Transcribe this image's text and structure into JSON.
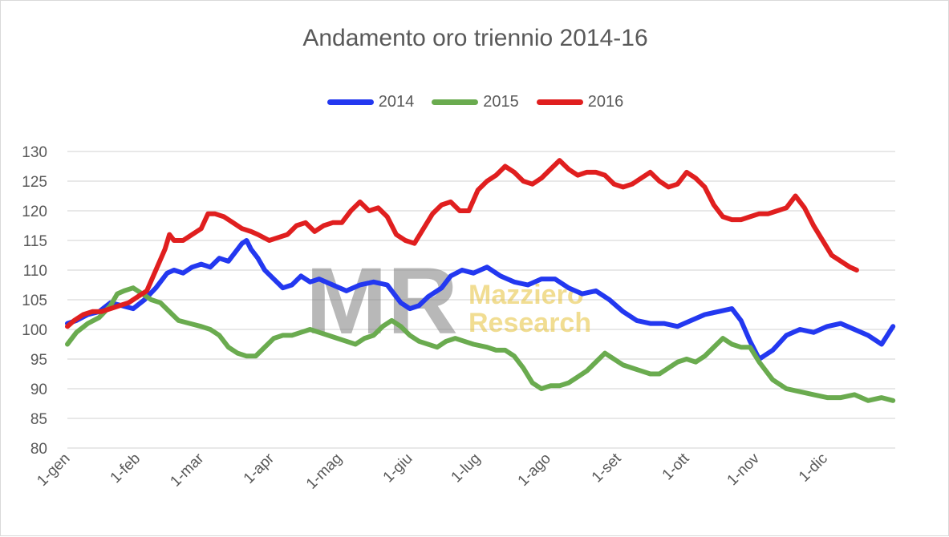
{
  "chart_data": {
    "type": "line",
    "title": "Andamento oro triennio 2014-16",
    "xlabel": "",
    "ylabel": "",
    "ylim": [
      80,
      130
    ],
    "yticks": [
      80,
      85,
      90,
      95,
      100,
      105,
      110,
      115,
      120,
      125,
      130
    ],
    "xticks": [
      "1-gen",
      "1-feb",
      "1-mar",
      "1-apr",
      "1-mag",
      "1-giu",
      "1-lug",
      "1-ago",
      "1-set",
      "1-ott",
      "1-nov",
      "1-dic"
    ],
    "xticks_day": [
      1,
      32,
      60,
      91,
      121,
      152,
      182,
      213,
      244,
      274,
      305,
      335
    ],
    "x_range_day": [
      1,
      366
    ],
    "grid": true,
    "legend_position": "top",
    "watermark": {
      "initials": "MR",
      "line1": "Mazziero",
      "line2": "Research"
    },
    "series": [
      {
        "name": "2014",
        "color": "#2338f0",
        "x": [
          1,
          5,
          10,
          15,
          20,
          25,
          30,
          35,
          40,
          45,
          48,
          52,
          56,
          60,
          64,
          68,
          72,
          75,
          78,
          80,
          82,
          85,
          88,
          92,
          96,
          100,
          104,
          108,
          112,
          118,
          124,
          130,
          136,
          142,
          148,
          152,
          156,
          160,
          166,
          170,
          175,
          180,
          186,
          192,
          198,
          204,
          210,
          216,
          222,
          228,
          234,
          240,
          246,
          252,
          258,
          264,
          270,
          276,
          282,
          288,
          294,
          298,
          302,
          306,
          312,
          318,
          324,
          330,
          336,
          342,
          348,
          354,
          360,
          365
        ],
        "values": [
          101,
          101.5,
          102.5,
          103,
          104.5,
          104,
          103.5,
          105,
          107,
          109.5,
          110,
          109.5,
          110.5,
          111,
          110.5,
          112,
          111.5,
          113,
          114.5,
          115,
          113.5,
          112,
          110,
          108.5,
          107,
          107.5,
          109,
          108,
          108.5,
          107.5,
          106.5,
          107.5,
          108,
          107.5,
          104.5,
          103.5,
          104,
          105.5,
          107,
          109,
          110,
          109.5,
          110.5,
          109,
          108,
          107.5,
          108.5,
          108.5,
          107,
          106,
          106.5,
          105,
          103,
          101.5,
          101,
          101,
          100.5,
          101.5,
          102.5,
          103,
          103.5,
          101.5,
          98,
          95,
          96.5,
          99,
          100,
          99.5,
          100.5,
          101,
          100,
          99,
          97.5,
          100.5
        ]
      },
      {
        "name": "2015",
        "color": "#6aab4f",
        "x": [
          1,
          5,
          10,
          15,
          20,
          23,
          26,
          30,
          34,
          38,
          42,
          46,
          50,
          55,
          60,
          64,
          68,
          72,
          76,
          80,
          84,
          88,
          92,
          96,
          100,
          104,
          108,
          112,
          116,
          120,
          124,
          128,
          132,
          136,
          140,
          144,
          148,
          152,
          156,
          160,
          164,
          168,
          172,
          176,
          180,
          186,
          190,
          194,
          198,
          202,
          206,
          210,
          214,
          218,
          222,
          226,
          230,
          234,
          238,
          242,
          246,
          250,
          254,
          258,
          262,
          266,
          270,
          274,
          278,
          282,
          286,
          290,
          294,
          298,
          302,
          306,
          312,
          318,
          324,
          330,
          336,
          342,
          348,
          354,
          360,
          365
        ],
        "values": [
          97.5,
          99.5,
          101,
          102,
          104,
          106,
          106.5,
          107,
          106,
          105,
          104.5,
          103,
          101.5,
          101,
          100.5,
          100,
          99,
          97,
          96,
          95.5,
          95.5,
          97,
          98.5,
          99,
          99,
          99.5,
          100,
          99.5,
          99,
          98.5,
          98,
          97.5,
          98.5,
          99,
          100.5,
          101.5,
          100.5,
          99,
          98,
          97.5,
          97,
          98,
          98.5,
          98,
          97.5,
          97,
          96.5,
          96.5,
          95.5,
          93.5,
          91,
          90,
          90.5,
          90.5,
          91,
          92,
          93,
          94.5,
          96,
          95,
          94,
          93.5,
          93,
          92.5,
          92.5,
          93.5,
          94.5,
          95,
          94.5,
          95.5,
          97,
          98.5,
          97.5,
          97,
          97,
          94.5,
          91.5,
          90,
          89.5,
          89,
          88.5,
          88.5,
          89,
          88,
          88.5,
          88
        ]
      },
      {
        "name": "2016",
        "color": "#e01f1f",
        "x": [
          1,
          4,
          8,
          12,
          16,
          20,
          24,
          28,
          32,
          36,
          40,
          44,
          46,
          48,
          52,
          56,
          60,
          63,
          66,
          70,
          74,
          78,
          82,
          85,
          90,
          94,
          98,
          102,
          106,
          110,
          114,
          118,
          122,
          126,
          130,
          134,
          138,
          142,
          146,
          150,
          154,
          158,
          162,
          166,
          170,
          174,
          178,
          182,
          186,
          190,
          194,
          198,
          202,
          206,
          210,
          214,
          218,
          222,
          226,
          230,
          234,
          238,
          242,
          246,
          250,
          254,
          258,
          262,
          266,
          270,
          274,
          278,
          282,
          286,
          290,
          294,
          298,
          302,
          306,
          310,
          314,
          318,
          322,
          326,
          330,
          334,
          338,
          342,
          346,
          349
        ],
        "values": [
          100.5,
          101.5,
          102.5,
          103,
          103,
          103.5,
          104,
          104.5,
          105.5,
          106.5,
          110,
          113.5,
          116,
          115,
          115,
          116,
          117,
          119.5,
          119.5,
          119,
          118,
          117,
          116.5,
          116,
          115,
          115.5,
          116,
          117.5,
          118,
          116.5,
          117.5,
          118,
          118,
          120,
          121.5,
          120,
          120.5,
          119,
          116,
          115,
          114.5,
          117,
          119.5,
          121,
          121.5,
          120,
          120,
          123.5,
          125,
          126,
          127.5,
          126.5,
          125,
          124.5,
          125.5,
          127,
          128.5,
          127,
          126,
          126.5,
          126.5,
          126,
          124.5,
          124,
          124.5,
          125.5,
          126.5,
          125,
          124,
          124.5,
          126.5,
          125.5,
          124,
          121,
          119,
          118.5,
          118.5,
          119,
          119.5,
          119.5,
          120,
          120.5,
          122.5,
          120.5,
          117.5,
          115,
          112.5,
          111.5,
          110.5,
          110
        ]
      }
    ]
  }
}
